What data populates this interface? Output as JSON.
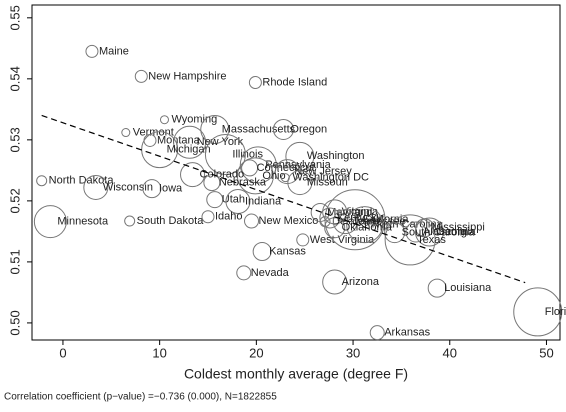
{
  "chart_data": {
    "type": "scatter",
    "xlabel": "Coldest monthly average (degree F)",
    "note": "Correlation coefficient (p−value) =−0.736 (0.000), N=1822855",
    "labels": [
      "Maine",
      "New Hampshire",
      "Rhode Island",
      "Wyoming",
      "Vermont",
      "Montana",
      "Massachusetts",
      "Oregon",
      "New York",
      "Michigan",
      "Illinois",
      "Washington",
      "Pennsylvania",
      "Connecticut",
      "New Jersey",
      "Ohio",
      "Missouri",
      "Washington DC",
      "North Dakota",
      "Wisconsin",
      "Iowa",
      "Colorado",
      "Nebraska",
      "Utah",
      "Indiana",
      "Minnesota",
      "South Dakota",
      "Idaho",
      "New Mexico",
      "West Virginia",
      "Kansas",
      "Nevada",
      "Arizona",
      "Louisiana",
      "Florida",
      "Arkansas",
      "Maryland",
      "Virginia",
      "Kentucky",
      "Delaware",
      "Tennessee",
      "California",
      "North Carolina",
      "Oklahoma",
      "Mississippi",
      "Alabama",
      "Georgia",
      "South Carolina",
      "Texas"
    ],
    "x": [
      3.0,
      8.1,
      19.9,
      10.5,
      6.5,
      9.0,
      15.7,
      22.8,
      13.1,
      10.0,
      16.8,
      24.5,
      20.2,
      19.3,
      23.2,
      19.9,
      24.5,
      23.0,
      -2.2,
      3.4,
      9.2,
      13.4,
      15.4,
      15.7,
      18.1,
      -1.3,
      6.9,
      15.0,
      19.5,
      24.8,
      20.6,
      18.7,
      28.1,
      38.7,
      49.1,
      32.5,
      26.6,
      28.1,
      27.6,
      27.1,
      29.2,
      30.2,
      31.2,
      28.1,
      37.4,
      36.5,
      37.9,
      34.3,
      35.9
    ],
    "y": [
      0.5445,
      0.5404,
      0.5394,
      0.5333,
      0.5312,
      0.5299,
      0.5317,
      0.5317,
      0.5296,
      0.5284,
      0.5276,
      0.5273,
      0.5259,
      0.5254,
      0.5248,
      0.5241,
      0.523,
      0.5238,
      0.5233,
      0.5222,
      0.522,
      0.5243,
      0.523,
      0.5202,
      0.5199,
      0.5166,
      0.5167,
      0.5174,
      0.5167,
      0.5136,
      0.5117,
      0.5082,
      0.5067,
      0.5057,
      0.5018,
      0.4984,
      0.5181,
      0.5182,
      0.5172,
      0.5166,
      0.5166,
      0.5169,
      0.5161,
      0.5156,
      0.5156,
      0.5149,
      0.5149,
      0.5148,
      0.5136
    ],
    "sizes": [
      6,
      6,
      6,
      4,
      4,
      6,
      14,
      10,
      16,
      18,
      20,
      14,
      18,
      8,
      12,
      18,
      12,
      4,
      5,
      12,
      9,
      12,
      8,
      8,
      12,
      16,
      5,
      6,
      7,
      6,
      9,
      7,
      12,
      9,
      24,
      7,
      9,
      12,
      10,
      5,
      12,
      30,
      18,
      10,
      9,
      10,
      14,
      10,
      25
    ],
    "trend": {
      "x": [
        -2.2,
        47.8
      ],
      "y": [
        0.534,
        0.5066
      ]
    },
    "xlim": [
      -3.2,
      51.4
    ],
    "xticks": [
      0,
      10,
      20,
      30,
      40,
      50
    ],
    "ylim": [
      0.4972,
      0.5521
    ],
    "yticks": [
      {
        "value": 0.5,
        "label": "0.50"
      },
      0.51,
      0.52,
      0.53,
      0.54,
      0.55
    ]
  }
}
